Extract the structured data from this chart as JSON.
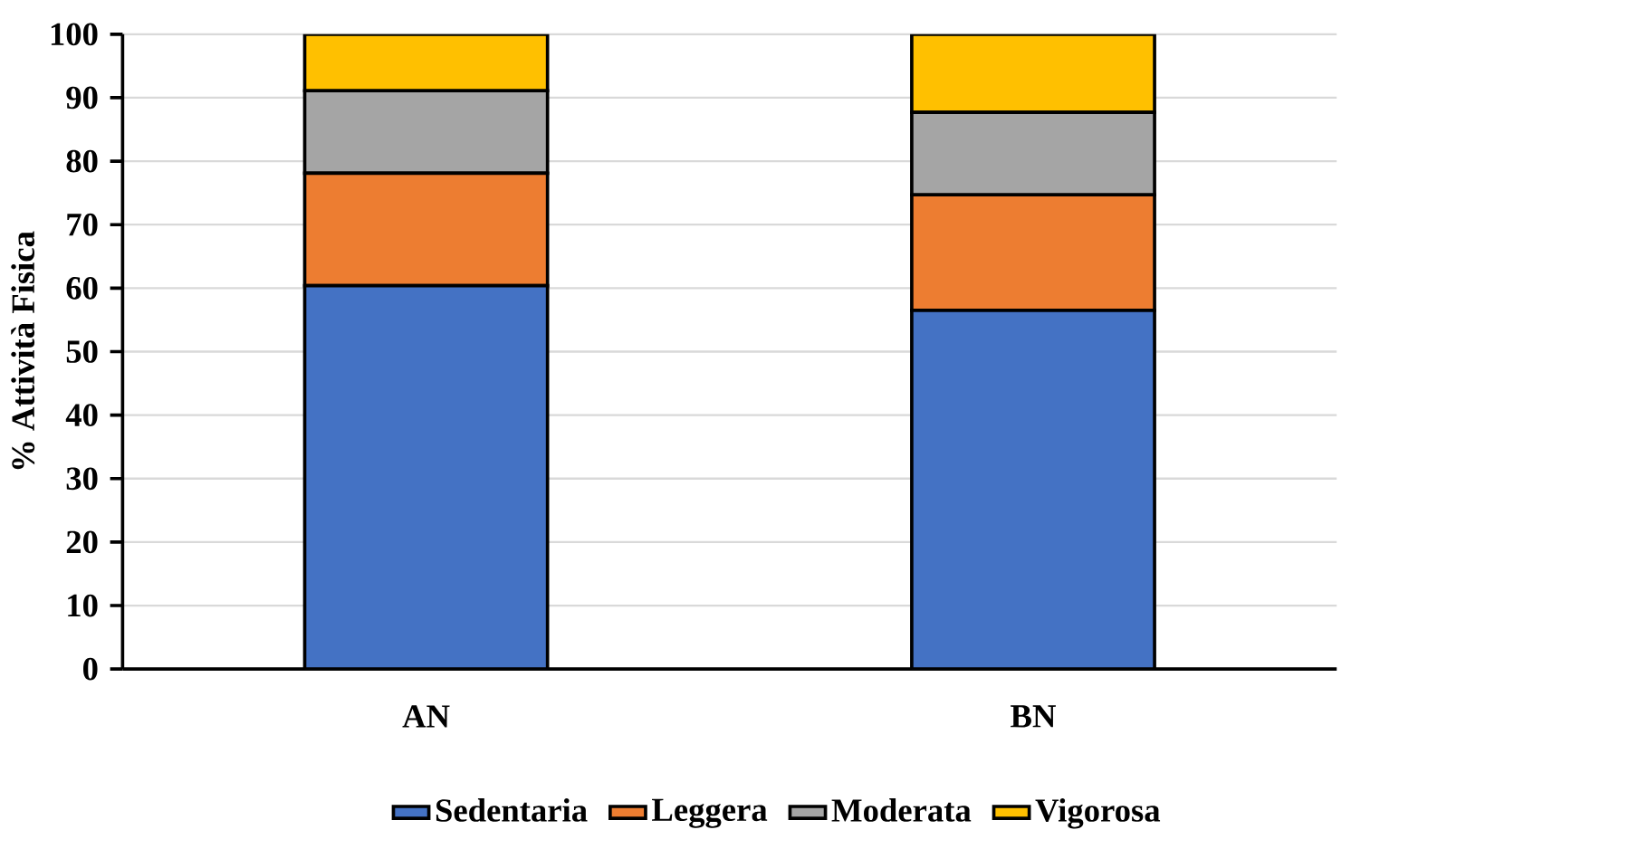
{
  "chart_data": {
    "type": "bar",
    "stacked": true,
    "ylabel": "% Attività Fisica",
    "categories": [
      "AN",
      "BN"
    ],
    "series": [
      {
        "name": "Sedentaria",
        "color": "#4472c4",
        "values": [
          60.4,
          56.5
        ]
      },
      {
        "name": "Leggera",
        "color": "#ed7d31",
        "values": [
          17.7,
          18.2
        ]
      },
      {
        "name": "Moderata",
        "color": "#a5a5a5",
        "values": [
          13.0,
          13.0
        ]
      },
      {
        "name": "Vigorosa",
        "color": "#ffc000",
        "values": [
          8.9,
          12.3
        ]
      }
    ],
    "ylim": [
      0,
      100
    ],
    "yticks": [
      0,
      10,
      20,
      30,
      40,
      50,
      60,
      70,
      80,
      90,
      100
    ],
    "grid": "y",
    "legend": "bottom"
  }
}
